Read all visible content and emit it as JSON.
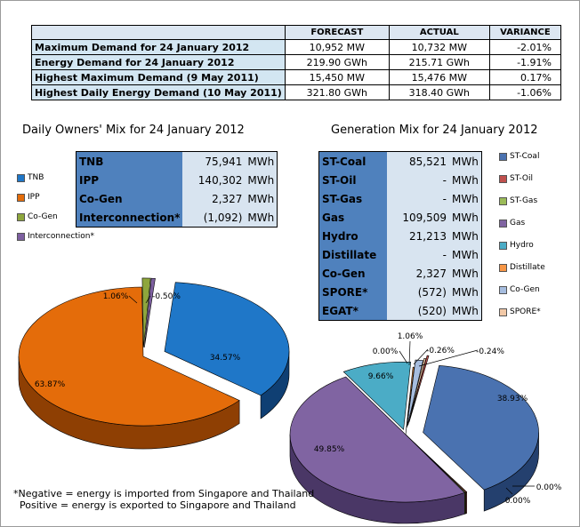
{
  "summary": {
    "headers": [
      "",
      "FORECAST",
      "ACTUAL",
      "VARIANCE"
    ],
    "rows": [
      {
        "label": "Maximum Demand for 24 January 2012",
        "forecast": "10,952  MW",
        "actual": "10,732  MW",
        "variance": "-2.01%"
      },
      {
        "label": "Energy Demand for 24 January 2012",
        "forecast": "219.90  GWh",
        "actual": "215.71  GWh",
        "variance": "-1.91%"
      },
      {
        "label": "Highest Maximum Demand (9 May 2011)",
        "forecast": "15,450  MW",
        "actual": "15,476  MW",
        "variance": "0.17%"
      },
      {
        "label": "Highest Daily Energy Demand (10 May 2011)",
        "forecast": "321.80  GWh",
        "actual": "318.40  GWh",
        "variance": "-1.06%"
      }
    ]
  },
  "owners_title": "Daily Owners' Mix for 24 January 2012",
  "generation_title": "Generation Mix for 24 January 2012",
  "owners_table": [
    {
      "name": "TNB",
      "value": "75,941",
      "unit": "MWh"
    },
    {
      "name": "IPP",
      "value": "140,302",
      "unit": "MWh"
    },
    {
      "name": "Co-Gen",
      "value": "2,327",
      "unit": "MWh"
    },
    {
      "name": "Interconnection*",
      "value": "(1,092)",
      "unit": "MWh"
    }
  ],
  "generation_table": [
    {
      "name": "ST-Coal",
      "value": "85,521",
      "unit": "MWh"
    },
    {
      "name": "ST-Oil",
      "value": "-",
      "unit": "MWh"
    },
    {
      "name": "ST-Gas",
      "value": "-",
      "unit": "MWh"
    },
    {
      "name": "Gas",
      "value": "109,509",
      "unit": "MWh"
    },
    {
      "name": "Hydro",
      "value": "21,213",
      "unit": "MWh"
    },
    {
      "name": "Distillate",
      "value": "-",
      "unit": "MWh"
    },
    {
      "name": "Co-Gen",
      "value": "2,327",
      "unit": "MWh"
    },
    {
      "name": "SPORE*",
      "value": "(572)",
      "unit": "MWh"
    },
    {
      "name": "EGAT*",
      "value": "(520)",
      "unit": "MWh"
    }
  ],
  "owners_legend": [
    {
      "label": "TNB",
      "color": "#1f77c8"
    },
    {
      "label": "IPP",
      "color": "#e46c0a"
    },
    {
      "label": "Co-Gen",
      "color": "#8ea63c"
    },
    {
      "label": "Interconnection*",
      "color": "#7d5fa0"
    }
  ],
  "generation_legend": [
    {
      "label": "ST-Coal",
      "color": "#4a72b0"
    },
    {
      "label": "ST-Oil",
      "color": "#c0504d"
    },
    {
      "label": "ST-Gas",
      "color": "#9bbb59"
    },
    {
      "label": "Gas",
      "color": "#8064a2"
    },
    {
      "label": "Hydro",
      "color": "#4bacc6"
    },
    {
      "label": "Distillate",
      "color": "#f79646"
    },
    {
      "label": "Co-Gen",
      "color": "#a6bddf"
    },
    {
      "label": "SPORE*",
      "color": "#f2c9a7"
    }
  ],
  "footnote": "*Negative = energy is imported from Singapore and Thailand\n  Positive = energy is exported to Singapore and Thailand",
  "chart_data": [
    {
      "type": "pie",
      "title": "Daily Owners' Mix for 24 January 2012",
      "slices": [
        {
          "label": "TNB",
          "value": 34.57,
          "color": "#1f77c8",
          "side": "#0f3f73"
        },
        {
          "label": "IPP",
          "value": 63.87,
          "color": "#e46c0a",
          "side": "#8e3f03"
        },
        {
          "label": "Co-Gen",
          "value": 1.06,
          "color": "#8ea63c",
          "side": "#566a1e"
        },
        {
          "label": "Interconnection*",
          "value": -0.5,
          "color": "#7d5fa0",
          "side": "#4a3766"
        }
      ],
      "data_labels": [
        "34.57%",
        "63.87%",
        "1.06%",
        "-0.50%"
      ]
    },
    {
      "type": "pie",
      "title": "Generation Mix for 24 January 2012",
      "slices": [
        {
          "label": "ST-Coal",
          "value": 38.93,
          "color": "#4a72b0",
          "side": "#24406e"
        },
        {
          "label": "ST-Oil",
          "value": 0.0,
          "color": "#c0504d",
          "side": "#7a2b29"
        },
        {
          "label": "ST-Gas",
          "value": 0.0,
          "color": "#9bbb59",
          "side": "#4d5a22"
        },
        {
          "label": "Gas",
          "value": 49.85,
          "color": "#8064a2",
          "side": "#4a3766"
        },
        {
          "label": "Hydro",
          "value": 9.66,
          "color": "#4bacc6",
          "side": "#256576"
        },
        {
          "label": "Distillate",
          "value": 0.0,
          "color": "#f79646",
          "side": "#9a5416"
        },
        {
          "label": "Co-Gen",
          "value": 1.06,
          "color": "#a6bddf",
          "side": "#6a7ea0"
        },
        {
          "label": "SPORE*",
          "value": -0.26,
          "color": "#f2c9a7",
          "side": "#a5826a"
        },
        {
          "label": "EGAT*",
          "value": -0.24,
          "color": "#c0504d",
          "side": "#7a2b29"
        }
      ],
      "data_labels": [
        "38.93%",
        "0.00%",
        "0.00%",
        "49.85%",
        "9.66%",
        "0.00%",
        "1.06%",
        "-0.26%",
        "-0.24%"
      ]
    }
  ]
}
